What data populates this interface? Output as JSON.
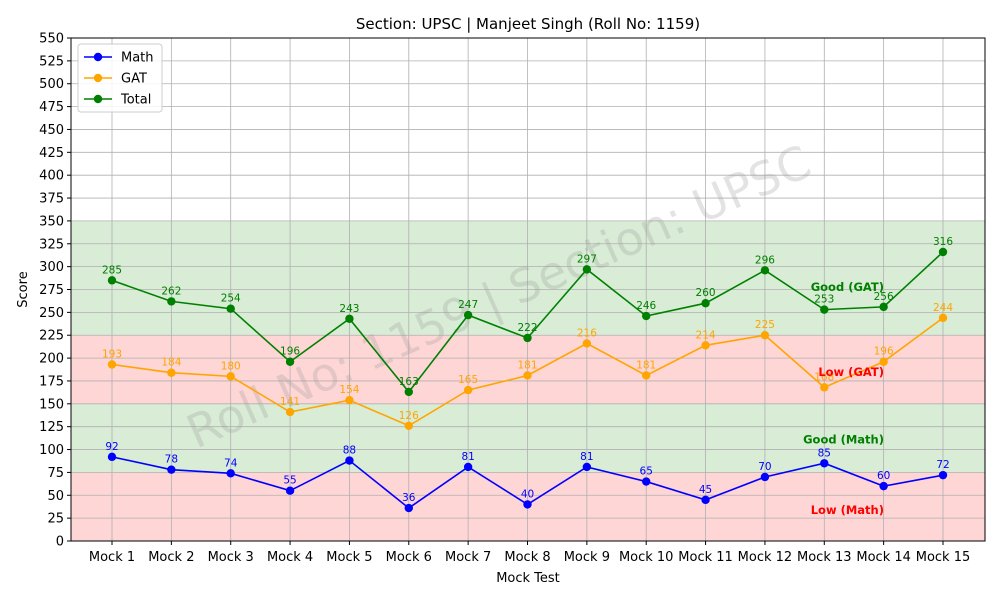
{
  "chart_data": {
    "type": "line",
    "title": "Section: UPSC | Manjeet Singh (Roll No: 1159)",
    "xlabel": "Mock Test",
    "ylabel": "Score",
    "ylim": [
      0,
      550
    ],
    "yticks": [
      0,
      25,
      50,
      75,
      100,
      125,
      150,
      175,
      200,
      225,
      250,
      275,
      300,
      325,
      350,
      375,
      400,
      425,
      450,
      475,
      500,
      525,
      550
    ],
    "grid": true,
    "legend_position": "top-left",
    "categories": [
      "Mock 1",
      "Mock 2",
      "Mock 3",
      "Mock 4",
      "Mock 5",
      "Mock 6",
      "Mock 7",
      "Mock 8",
      "Mock 9",
      "Mock 10",
      "Mock 11",
      "Mock 12",
      "Mock 13",
      "Mock 14",
      "Mock 15"
    ],
    "series": [
      {
        "name": "Math",
        "color": "#0000ff",
        "values": [
          92,
          78,
          74,
          55,
          88,
          36,
          81,
          40,
          81,
          65,
          45,
          70,
          85,
          60,
          72
        ]
      },
      {
        "name": "GAT",
        "color": "#ffa500",
        "values": [
          193,
          184,
          180,
          141,
          154,
          126,
          165,
          181,
          216,
          181,
          214,
          225,
          168,
          196,
          244
        ]
      },
      {
        "name": "Total",
        "color": "#008000",
        "values": [
          285,
          262,
          254,
          196,
          243,
          163,
          247,
          222,
          297,
          246,
          260,
          296,
          253,
          256,
          316
        ]
      }
    ],
    "bands": [
      {
        "from": 0,
        "to": 75,
        "color": "#ffd6d6"
      },
      {
        "from": 75,
        "to": 150,
        "color": "#d8ecd6"
      },
      {
        "from": 150,
        "to": 225,
        "color": "#ffd6d6"
      },
      {
        "from": 225,
        "to": 350,
        "color": "#d8ecd6"
      }
    ],
    "annotations": [
      {
        "text": "Good (GAT)",
        "y": 278,
        "color": "#008000"
      },
      {
        "text": "Low (GAT)",
        "y": 185,
        "color": "#ff0000"
      },
      {
        "text": "Good (Math)",
        "y": 111,
        "color": "#008000"
      },
      {
        "text": "Low (Math)",
        "y": 34,
        "color": "#ff0000"
      }
    ],
    "watermark": "Roll No: 1159 | Section: UPSC"
  }
}
